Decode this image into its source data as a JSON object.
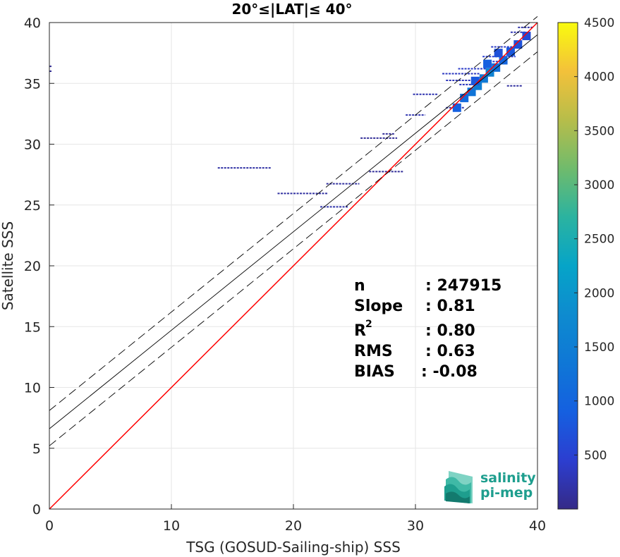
{
  "chart_data": {
    "type": "scatter",
    "title": "20°≤|LAT|≤ 40°",
    "xlabel": "TSG (GOSUD-Sailing-ship) SSS",
    "ylabel": "Satellite SSS",
    "xlim": [
      0,
      40
    ],
    "ylim": [
      0,
      40
    ],
    "x_ticks": [
      0,
      10,
      20,
      30,
      40
    ],
    "y_ticks": [
      0,
      5,
      10,
      15,
      20,
      25,
      30,
      35,
      40
    ],
    "grid": true,
    "colorbar": {
      "colormap": "parula",
      "lim": [
        0,
        4500
      ],
      "ticks": [
        500,
        1000,
        1500,
        2000,
        2500,
        3000,
        3500,
        4000,
        4500
      ]
    },
    "lines": [
      {
        "role": "identity",
        "color": "#ff0000",
        "style": "solid",
        "x": [
          0,
          40
        ],
        "y": [
          0,
          40
        ]
      },
      {
        "role": "fit",
        "color": "#000000",
        "style": "solid",
        "x": [
          0,
          40
        ],
        "y": [
          6.6,
          39.0
        ]
      },
      {
        "role": "fit-upper",
        "color": "#000000",
        "style": "dashed",
        "x": [
          0,
          40
        ],
        "y": [
          8.1,
          40.5
        ]
      },
      {
        "role": "fit-lower",
        "color": "#000000",
        "style": "dashed",
        "x": [
          0,
          40
        ],
        "y": [
          5.2,
          37.6
        ]
      }
    ],
    "density_segments": [
      {
        "y": 28.05,
        "x0": 13.8,
        "x1": 18.2,
        "density": 180
      },
      {
        "y": 25.95,
        "x0": 18.7,
        "x1": 22.8,
        "density": 160
      },
      {
        "y": 26.75,
        "x0": 22.7,
        "x1": 25.4,
        "density": 150
      },
      {
        "y": 24.85,
        "x0": 22.2,
        "x1": 24.5,
        "density": 220
      },
      {
        "y": 27.75,
        "x0": 26.2,
        "x1": 29.0,
        "density": 120
      },
      {
        "y": 30.5,
        "x0": 25.5,
        "x1": 28.5,
        "density": 100
      },
      {
        "y": 30.85,
        "x0": 27.3,
        "x1": 28.3,
        "density": 100
      },
      {
        "y": 32.4,
        "x0": 29.2,
        "x1": 30.8,
        "density": 250
      },
      {
        "y": 34.1,
        "x0": 29.8,
        "x1": 31.8,
        "density": 250
      },
      {
        "y": 34.9,
        "x0": 33.6,
        "x1": 34.9,
        "density": 350
      },
      {
        "y": 35.25,
        "x0": 32.5,
        "x1": 35.0,
        "density": 300
      },
      {
        "y": 35.8,
        "x0": 32.2,
        "x1": 35.3,
        "density": 350
      },
      {
        "y": 36.2,
        "x0": 33.5,
        "x1": 35.8,
        "density": 400
      },
      {
        "y": 37.2,
        "x0": 35.5,
        "x1": 38.2,
        "density": 450
      },
      {
        "y": 38.0,
        "x0": 36.2,
        "x1": 38.6,
        "density": 400
      },
      {
        "y": 36.8,
        "x0": 35.8,
        "x1": 37.5,
        "density": 500
      },
      {
        "y": 39.2,
        "x0": 37.8,
        "x1": 39.0,
        "density": 250
      },
      {
        "y": 39.6,
        "x0": 38.4,
        "x1": 39.6,
        "density": 200
      },
      {
        "y": 34.8,
        "x0": 37.5,
        "x1": 38.8,
        "density": 150
      },
      {
        "y": 33.0,
        "x0": 32.5,
        "x1": 34.0,
        "density": 200
      },
      {
        "y": 36.0,
        "x0": 0.0,
        "x1": 0.2,
        "density": 100
      },
      {
        "y": 36.4,
        "x0": 0.0,
        "x1": 0.2,
        "density": 100
      }
    ],
    "density_core": [
      {
        "x": 33.4,
        "y": 33.0,
        "density": 900
      },
      {
        "x": 34.0,
        "y": 33.8,
        "density": 1100
      },
      {
        "x": 34.6,
        "y": 34.3,
        "density": 1300
      },
      {
        "x": 35.1,
        "y": 34.8,
        "density": 1500
      },
      {
        "x": 35.6,
        "y": 35.4,
        "density": 1400
      },
      {
        "x": 36.1,
        "y": 35.9,
        "density": 1600
      },
      {
        "x": 36.6,
        "y": 36.3,
        "density": 1200
      },
      {
        "x": 37.2,
        "y": 36.9,
        "density": 1000
      },
      {
        "x": 37.8,
        "y": 37.6,
        "density": 800
      },
      {
        "x": 38.4,
        "y": 38.2,
        "density": 700
      },
      {
        "x": 39.1,
        "y": 38.9,
        "density": 600
      },
      {
        "x": 35.9,
        "y": 36.6,
        "density": 900
      },
      {
        "x": 34.9,
        "y": 35.2,
        "density": 800
      },
      {
        "x": 36.8,
        "y": 37.5,
        "density": 700
      }
    ]
  },
  "stats": {
    "n_label": "n",
    "n_value": ": 247915",
    "slope_label": "Slope",
    "slope_value": ": 0.81",
    "r2_label": "R",
    "r2_sup": "2",
    "r2_value": ": 0.80",
    "rms_label": "RMS",
    "rms_value": ": 0.63",
    "bias_label": "BIAS",
    "bias_value": ": -0.08"
  },
  "logo": {
    "line1": "salinity",
    "line2": "pi-mep"
  }
}
